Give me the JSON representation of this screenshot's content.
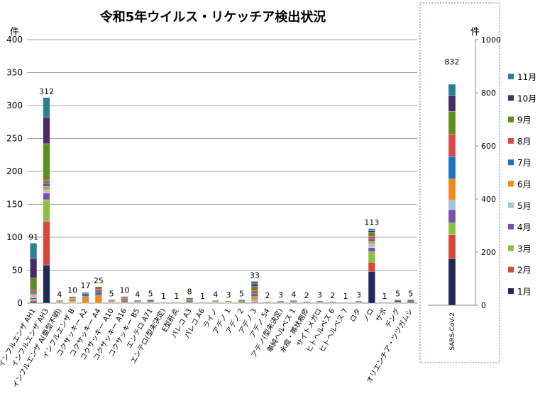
{
  "chart_data": [
    {
      "type": "bar",
      "stacked": true,
      "title": "令和5年ウイルス・リケッチア検出状況",
      "ylabel": "件",
      "ylim": [
        0,
        400
      ],
      "yticks": [
        0,
        50,
        100,
        150,
        200,
        250,
        300,
        350,
        400
      ],
      "grid": true,
      "categories": [
        "インフルエンザ AH1",
        "インフルエンザ AH3",
        "インフルエンザ A(亜型不明)",
        "インフルエンザ B",
        "コクサッキー A2",
        "コクサッキー A4",
        "コクサッキー A10",
        "コクサッキー A16",
        "コクサッキー B5",
        "エンテロ A71",
        "エンテロ(型未決定)",
        "E型肝炎",
        "パレコ A3",
        "パレコ A6",
        "ライノ",
        "アデノ 1",
        "アデノ 2",
        "アデノ 3",
        "アデノ 54",
        "アデノ(型未決定)",
        "単純ヘルペス 1",
        "水痘・帯状疱疹",
        "サイトメガロ",
        "ヒトヘルペス 6",
        "ヒトヘルペス 7",
        "ロタ",
        "ノロ",
        "サポ",
        "デング",
        "オリエンチア・ツツガムシ"
      ],
      "totals": [
        91,
        312,
        4,
        10,
        17,
        25,
        5,
        10,
        4,
        5,
        1,
        1,
        8,
        1,
        4,
        3,
        5,
        33,
        2,
        3,
        4,
        2,
        3,
        2,
        1,
        3,
        113,
        1,
        5,
        5
      ],
      "series": [
        {
          "name": "1月",
          "values": [
            2,
            58,
            0,
            0,
            0,
            0,
            0,
            0,
            0,
            0,
            0,
            0,
            0,
            0,
            0,
            0,
            0,
            1,
            0,
            0,
            0,
            0,
            0,
            0,
            0,
            0,
            48,
            0,
            0,
            0
          ]
        },
        {
          "name": "2月",
          "values": [
            2,
            66,
            0,
            0,
            0,
            0,
            0,
            0,
            0,
            0,
            0,
            0,
            0,
            0,
            0,
            0,
            0,
            1,
            0,
            0,
            0,
            0,
            0,
            0,
            0,
            0,
            14,
            0,
            0,
            0
          ]
        },
        {
          "name": "3月",
          "values": [
            2,
            33,
            0,
            0,
            0,
            0,
            0,
            0,
            0,
            0,
            0,
            0,
            0,
            0,
            0,
            0,
            0,
            1,
            0,
            0,
            0,
            0,
            0,
            0,
            0,
            0,
            16,
            0,
            0,
            0
          ]
        },
        {
          "name": "4月",
          "values": [
            2,
            10,
            0,
            0,
            0,
            0,
            0,
            0,
            0,
            0,
            0,
            0,
            0,
            0,
            0,
            0,
            0,
            1,
            0,
            0,
            0,
            0,
            0,
            0,
            0,
            0,
            6,
            0,
            0,
            0
          ]
        },
        {
          "name": "5月",
          "values": [
            3,
            5,
            0,
            2,
            0,
            0,
            0,
            0,
            0,
            0,
            0,
            0,
            0,
            0,
            0,
            0,
            0,
            1,
            0,
            0,
            0,
            0,
            0,
            0,
            0,
            0,
            6,
            0,
            0,
            0
          ]
        },
        {
          "name": "6月",
          "values": [
            3,
            5,
            1,
            5,
            10,
            12,
            1,
            2,
            0,
            0,
            0,
            0,
            2,
            0,
            1,
            1,
            0,
            5,
            0,
            0,
            0,
            0,
            0,
            0,
            0,
            0,
            4,
            0,
            0,
            0
          ]
        },
        {
          "name": "7月",
          "values": [
            3,
            5,
            1,
            2,
            5,
            5,
            1,
            2,
            1,
            0,
            0,
            0,
            2,
            0,
            1,
            0,
            0,
            4,
            0,
            0,
            0,
            0,
            0,
            0,
            0,
            0,
            3,
            0,
            0,
            0
          ]
        },
        {
          "name": "8月",
          "values": [
            3,
            5,
            1,
            0,
            1,
            4,
            1,
            3,
            1,
            1,
            0,
            0,
            2,
            0,
            1,
            1,
            1,
            5,
            1,
            0,
            1,
            0,
            1,
            0,
            0,
            0,
            5,
            0,
            1,
            0
          ]
        },
        {
          "name": "9月",
          "values": [
            18,
            55,
            1,
            1,
            1,
            4,
            1,
            2,
            1,
            1,
            0,
            0,
            2,
            0,
            1,
            1,
            2,
            6,
            1,
            1,
            1,
            1,
            1,
            1,
            0,
            1,
            5,
            0,
            1,
            1
          ]
        },
        {
          "name": "10月",
          "values": [
            30,
            40,
            0,
            0,
            0,
            0,
            1,
            1,
            1,
            1,
            0,
            0,
            0,
            0,
            0,
            0,
            1,
            4,
            0,
            1,
            1,
            1,
            1,
            1,
            0,
            1,
            3,
            0,
            2,
            2
          ]
        },
        {
          "name": "11月",
          "values": [
            23,
            30,
            0,
            0,
            0,
            0,
            0,
            0,
            0,
            2,
            1,
            1,
            0,
            1,
            0,
            0,
            1,
            4,
            0,
            1,
            1,
            0,
            0,
            0,
            1,
            1,
            3,
            1,
            1,
            2
          ]
        }
      ],
      "legend_position": "right"
    },
    {
      "type": "bar",
      "stacked": true,
      "ylabel": "件",
      "ylim": [
        0,
        1000
      ],
      "yticks": [
        0,
        200,
        400,
        600,
        800,
        1000
      ],
      "categories": [
        "SARS-CoV-2"
      ],
      "totals": [
        832
      ],
      "series": [
        {
          "name": "1月",
          "values": [
            175
          ]
        },
        {
          "name": "2月",
          "values": [
            90
          ]
        },
        {
          "name": "3月",
          "values": [
            45
          ]
        },
        {
          "name": "4月",
          "values": [
            50
          ]
        },
        {
          "name": "5月",
          "values": [
            35
          ]
        },
        {
          "name": "6月",
          "values": [
            80
          ]
        },
        {
          "name": "7月",
          "values": [
            85
          ]
        },
        {
          "name": "8月",
          "values": [
            85
          ]
        },
        {
          "name": "9月",
          "values": [
            85
          ]
        },
        {
          "name": "10月",
          "values": [
            60
          ]
        },
        {
          "name": "11月",
          "values": [
            42
          ]
        }
      ]
    }
  ],
  "colors": {
    "1月": "#1f2a5a",
    "2月": "#d8453b",
    "3月": "#8cbf3f",
    "4月": "#7a4fa8",
    "5月": "#9fc6dc",
    "6月": "#f08a1c",
    "7月": "#1b74c4",
    "8月": "#d84a4a",
    "9月": "#5e8c1f",
    "10月": "#4a2a6a",
    "11月": "#2a7f92"
  },
  "legend_order": [
    "11月",
    "10月",
    "9月",
    "8月",
    "7月",
    "6月",
    "5月",
    "4月",
    "3月",
    "2月",
    "1月"
  ]
}
